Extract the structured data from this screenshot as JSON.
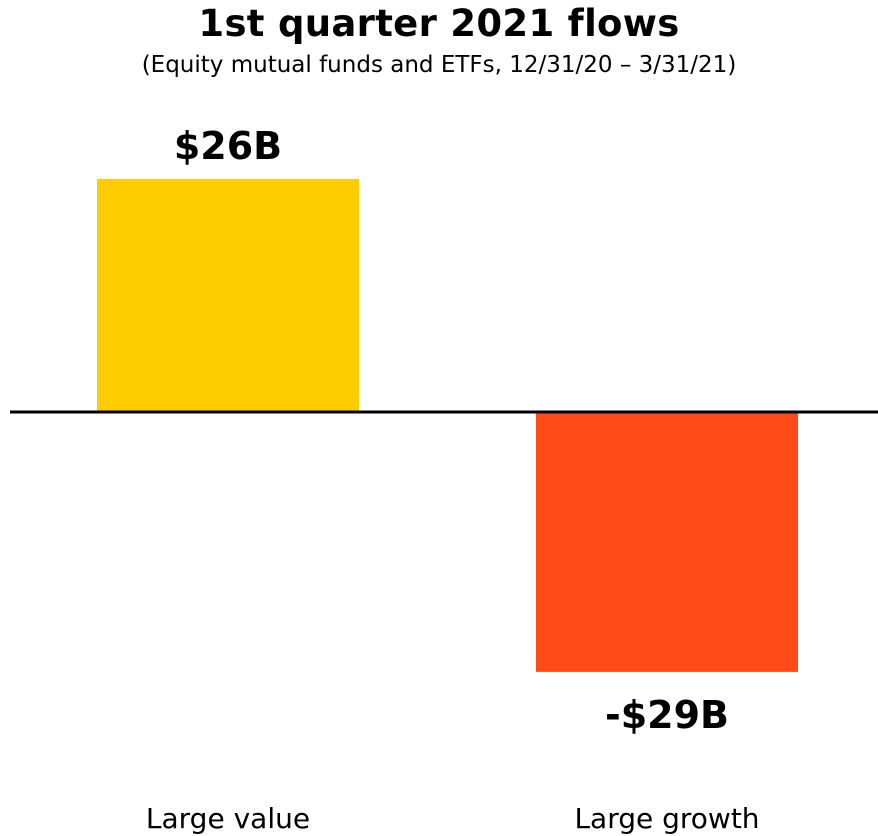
{
  "chart_data": {
    "type": "bar",
    "title": "1st quarter 2021 flows",
    "subtitle": "(Equity mutual funds and ETFs, 12/31/20 – 3/31/21)",
    "categories": [
      "Large value",
      "Large growth"
    ],
    "values": [
      26,
      -29
    ],
    "value_labels": [
      "$26B",
      "-$29B"
    ],
    "colors": [
      "#FFCC00",
      "#FF4B15"
    ],
    "ylim": [
      -29,
      26
    ],
    "grid": false
  }
}
